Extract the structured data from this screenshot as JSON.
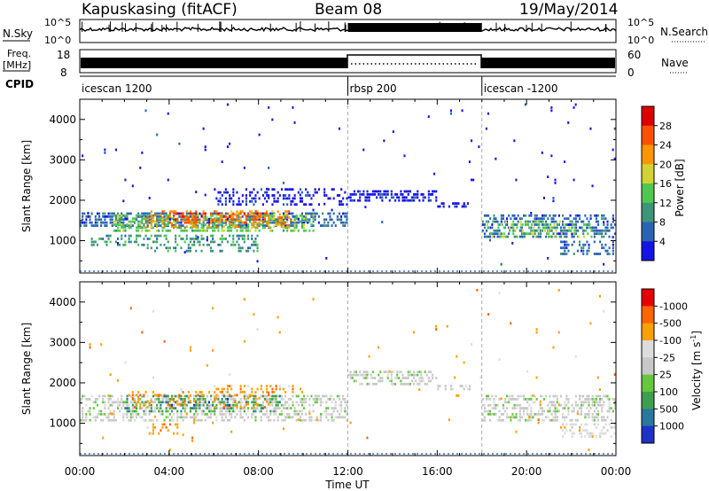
{
  "header": {
    "station": "Kapuskasing (fitACF)",
    "beam": "Beam 08",
    "date": "19/May/2014"
  },
  "top_panels": {
    "nsky_label": "N.Sky",
    "nsky_ticks": [
      "10^5",
      "10^0"
    ],
    "nsearch_label": "N.Search",
    "nsearch_ticks": [
      "10^5",
      "10^0"
    ],
    "freq_label": "Freq.",
    "freq_unit": "[MHz]",
    "freq_ticks": [
      "18",
      "8"
    ],
    "nave_label": "Nave",
    "nave_ticks": [
      "60",
      "0"
    ],
    "cpid_label": "CPID"
  },
  "cpid_segments": [
    {
      "label": "icescan 1200",
      "start_hour": 0,
      "end_hour": 12
    },
    {
      "label": "rbsp 200",
      "start_hour": 12,
      "end_hour": 18
    },
    {
      "label": "icescan -1200",
      "start_hour": 18,
      "end_hour": 24
    }
  ],
  "chart_data": [
    {
      "type": "heatmap",
      "name": "power",
      "ylabel": "Slant Range [km]",
      "ylim": [
        200,
        4500
      ],
      "yticks": [
        "1000",
        "2000",
        "3000",
        "4000"
      ],
      "xlim": [
        0,
        24
      ],
      "colorbar_label": "Power [dB]",
      "colorbar_ticks": [
        "4",
        "8",
        "12",
        "16",
        "20",
        "24",
        "28"
      ],
      "colorbar_colors": [
        "#1414e6",
        "#2864b4",
        "#3c9678",
        "#50c850",
        "#d2d232",
        "#ff9600",
        "#ff5000",
        "#dc0000"
      ],
      "scatter_regions": [
        {
          "t": [
            0.0,
            12.0
          ],
          "r": [
            1300,
            1700
          ],
          "level": 1,
          "density": 0.55
        },
        {
          "t": [
            1.5,
            10.5
          ],
          "r": [
            1200,
            1650
          ],
          "level": 3,
          "density": 0.5
        },
        {
          "t": [
            3.0,
            9.5
          ],
          "r": [
            1300,
            1750
          ],
          "level": 5,
          "density": 0.35
        },
        {
          "t": [
            4.0,
            8.5
          ],
          "r": [
            1400,
            1700
          ],
          "level": 6,
          "density": 0.3
        },
        {
          "t": [
            0.5,
            8.0
          ],
          "r": [
            800,
            1150
          ],
          "level": 2,
          "density": 0.35
        },
        {
          "t": [
            3.0,
            8.0
          ],
          "r": [
            650,
            850
          ],
          "level": 2,
          "density": 0.3
        },
        {
          "t": [
            6.0,
            12.0
          ],
          "r": [
            1800,
            2300
          ],
          "level": 0,
          "density": 0.3
        },
        {
          "t": [
            12.0,
            16.0
          ],
          "r": [
            1900,
            2250
          ],
          "level": 0,
          "density": 0.55
        },
        {
          "t": [
            16.0,
            17.5
          ],
          "r": [
            1750,
            1950
          ],
          "level": 0,
          "density": 0.5
        },
        {
          "t": [
            18.0,
            24.0
          ],
          "r": [
            1000,
            1650
          ],
          "level": 1,
          "density": 0.45
        },
        {
          "t": [
            18.2,
            23.0
          ],
          "r": [
            1050,
            1500
          ],
          "level": 3,
          "density": 0.3
        },
        {
          "t": [
            21.5,
            24.0
          ],
          "r": [
            600,
            1000
          ],
          "level": 1,
          "density": 0.35
        },
        {
          "t": [
            0.0,
            24.0
          ],
          "r": [
            200,
            4400
          ],
          "level": 0,
          "density": 0.006
        }
      ]
    },
    {
      "type": "heatmap",
      "name": "velocity",
      "ylabel": "Slant Range [km]",
      "ylim": [
        200,
        4500
      ],
      "yticks": [
        "1000",
        "2000",
        "3000",
        "4000"
      ],
      "xlim": [
        0,
        24
      ],
      "xticks": [
        "00:00",
        "04:00",
        "08:00",
        "12:00",
        "16:00",
        "20:00",
        "00:00"
      ],
      "xlabel": "Time UT",
      "colorbar_label": "Velocity [m s",
      "colorbar_exp": "-1",
      "colorbar_label_end": "]",
      "colorbar_ticks": [
        "1000",
        "500",
        "100",
        "25",
        "-25",
        "-100",
        "-500",
        "-1000"
      ],
      "colorbar_colors": [
        "#1e32c8",
        "#2878a0",
        "#3ca050",
        "#64c83c",
        "#c8c8c8",
        "#dcdcdc",
        "#ffa000",
        "#ff6400",
        "#e60000"
      ],
      "scatter_regions": [
        {
          "t": [
            0.0,
            12.0
          ],
          "r": [
            1000,
            1700
          ],
          "level": 4,
          "density": 0.45
        },
        {
          "t": [
            2.0,
            9.0
          ],
          "r": [
            1200,
            1700
          ],
          "level": 2,
          "density": 0.3
        },
        {
          "t": [
            2.0,
            8.5
          ],
          "r": [
            1300,
            1800
          ],
          "level": 6,
          "density": 0.25
        },
        {
          "t": [
            3.5,
            7.0
          ],
          "r": [
            1400,
            1700
          ],
          "level": 1,
          "density": 0.15
        },
        {
          "t": [
            3.0,
            4.5
          ],
          "r": [
            700,
            1000
          ],
          "level": 6,
          "density": 0.3
        },
        {
          "t": [
            6.0,
            10.0
          ],
          "r": [
            1700,
            1950
          ],
          "level": 6,
          "density": 0.25
        },
        {
          "t": [
            12.0,
            16.0
          ],
          "r": [
            1900,
            2300
          ],
          "level": 4,
          "density": 0.45
        },
        {
          "t": [
            16.0,
            17.5
          ],
          "r": [
            1750,
            1950
          ],
          "level": 4,
          "density": 0.4
        },
        {
          "t": [
            18.0,
            24.0
          ],
          "r": [
            1000,
            1700
          ],
          "level": 4,
          "density": 0.4
        },
        {
          "t": [
            21.5,
            24.0
          ],
          "r": [
            600,
            1000
          ],
          "level": 5,
          "density": 0.35
        },
        {
          "t": [
            0.0,
            24.0
          ],
          "r": [
            200,
            4400
          ],
          "level": 6,
          "density": 0.005
        }
      ]
    }
  ]
}
